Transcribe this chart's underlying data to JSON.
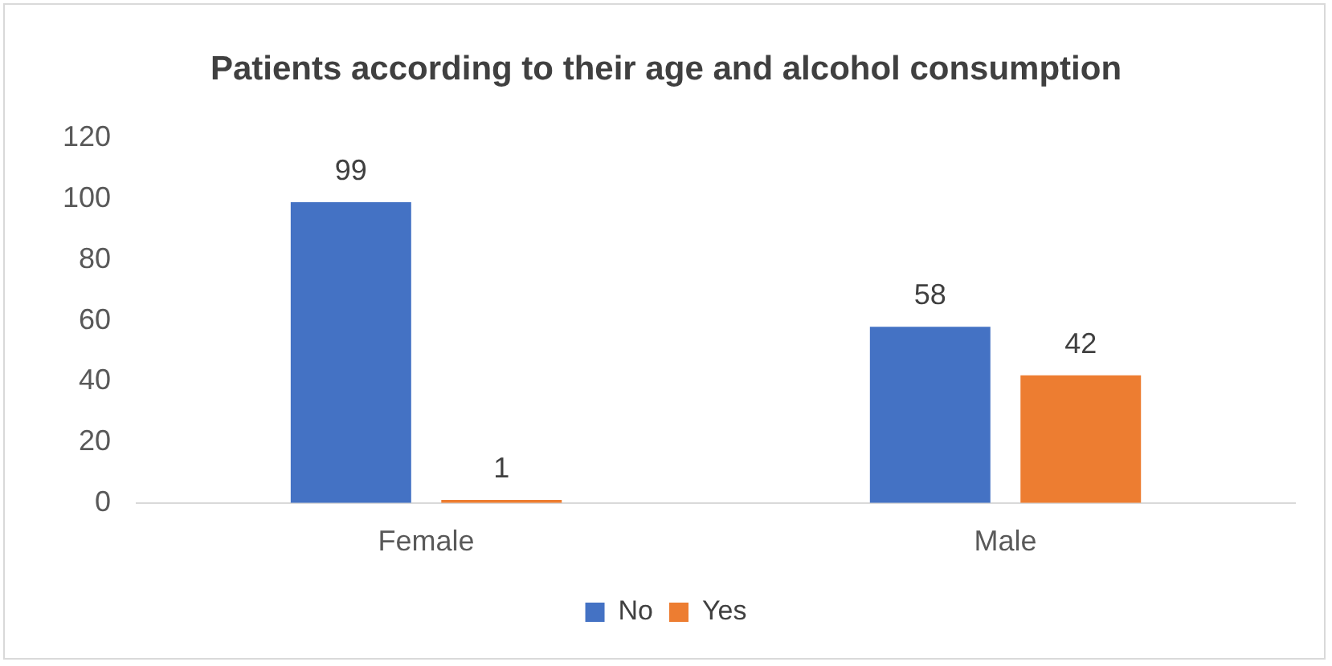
{
  "chart_data": {
    "type": "bar",
    "title": "Patients according to their age and alcohol consumption",
    "categories": [
      "Female",
      "Male"
    ],
    "series": [
      {
        "name": "No",
        "color": "#4472c4",
        "values": [
          99,
          58
        ]
      },
      {
        "name": "Yes",
        "color": "#ed7d31",
        "values": [
          1,
          42
        ]
      }
    ],
    "ylim": [
      0,
      120
    ],
    "yticks": [
      0,
      20,
      40,
      60,
      80,
      100,
      120
    ],
    "grid": false,
    "legend": "bottom",
    "data_labels": true
  }
}
